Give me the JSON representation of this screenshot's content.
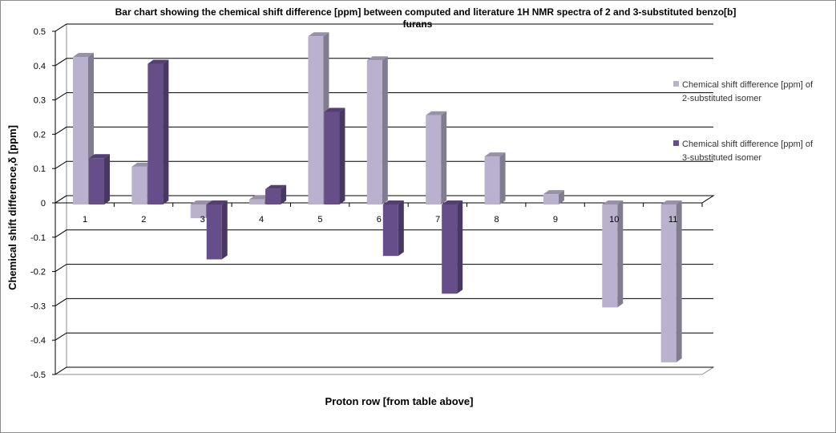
{
  "chart_data": {
    "type": "bar",
    "title_lines": [
      "Bar chart showing the chemical shift difference [ppm] between computed and literature  1H NMR spectra of 2 and 3-substituted benzo[b]",
      "furans"
    ],
    "xlabel": "Proton row [from table above]",
    "ylabel": "Chemical shift difference,δ [ppm]",
    "ylim": [
      -0.5,
      0.5
    ],
    "yticks": [
      "0.5",
      "0.4",
      "0.3",
      "0.2",
      "0.1",
      "0",
      "-0.1",
      "-0.2",
      "-0.3",
      "-0.4",
      "-0.5"
    ],
    "categories": [
      "1",
      "2",
      "3",
      "4",
      "5",
      "6",
      "7",
      "8",
      "9",
      "10",
      "11"
    ],
    "grid": true,
    "legend_position": "right",
    "series": [
      {
        "name": "Chemical shift difference [ppm] of 2-substituted isomer",
        "legend_lines": [
          "Chemical shift difference [ppm] of",
          "2-substituted isomer"
        ],
        "color": "#b9b1cd",
        "values": [
          0.43,
          0.11,
          -0.04,
          0.015,
          0.49,
          0.42,
          0.26,
          0.14,
          0.03,
          -0.3,
          -0.46
        ]
      },
      {
        "name": "Chemical shift difference [ppm] of 3-substituted isomer",
        "legend_lines": [
          "Chemical shift difference [ppm] of",
          "3-substituted isomer"
        ],
        "color": "#654e8a",
        "values": [
          0.135,
          0.41,
          -0.16,
          0.045,
          0.27,
          -0.15,
          -0.26,
          null,
          null,
          null,
          null
        ]
      }
    ]
  }
}
